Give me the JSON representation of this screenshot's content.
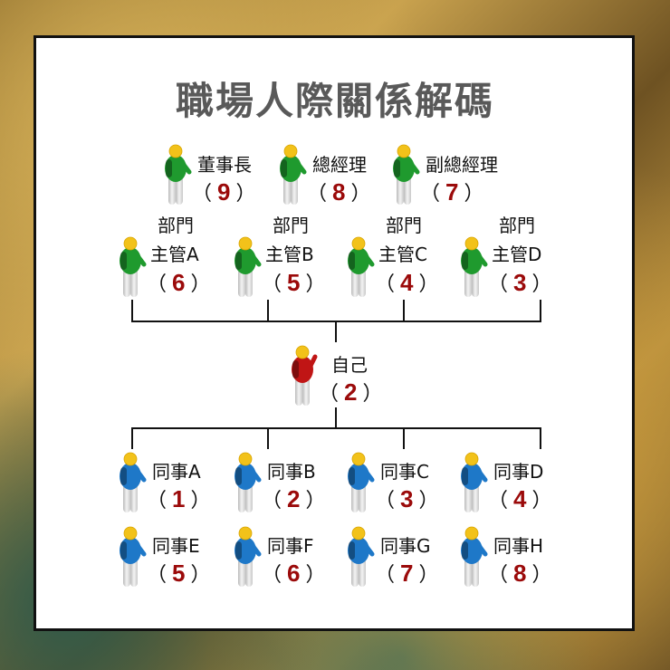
{
  "title": "職場人際關係解碼",
  "colors": {
    "executive": "#1f9a2e",
    "manager": "#1f9a2e",
    "self": "#c01515",
    "colleague": "#1e78c8",
    "number": "#9b0a0a",
    "head": "#f2c21a",
    "legs": "#d9d9d9"
  },
  "executives": [
    {
      "label": "董事長",
      "value": "9"
    },
    {
      "label": "總經理",
      "value": "8"
    },
    {
      "label": "副總經理",
      "value": "7"
    }
  ],
  "managers": [
    {
      "line1": "部門",
      "line2": "主管A",
      "value": "6"
    },
    {
      "line1": "部門",
      "line2": "主管B",
      "value": "5"
    },
    {
      "line1": "部門",
      "line2": "主管C",
      "value": "4"
    },
    {
      "line1": "部門",
      "line2": "主管D",
      "value": "3"
    }
  ],
  "self": {
    "label": "自己",
    "value": "2"
  },
  "colleagues": [
    {
      "label": "同事A",
      "value": "1"
    },
    {
      "label": "同事B",
      "value": "2"
    },
    {
      "label": "同事C",
      "value": "3"
    },
    {
      "label": "同事D",
      "value": "4"
    },
    {
      "label": "同事E",
      "value": "5"
    },
    {
      "label": "同事F",
      "value": "6"
    },
    {
      "label": "同事G",
      "value": "7"
    },
    {
      "label": "同事H",
      "value": "8"
    }
  ],
  "paren_open": "（",
  "paren_close": "）"
}
